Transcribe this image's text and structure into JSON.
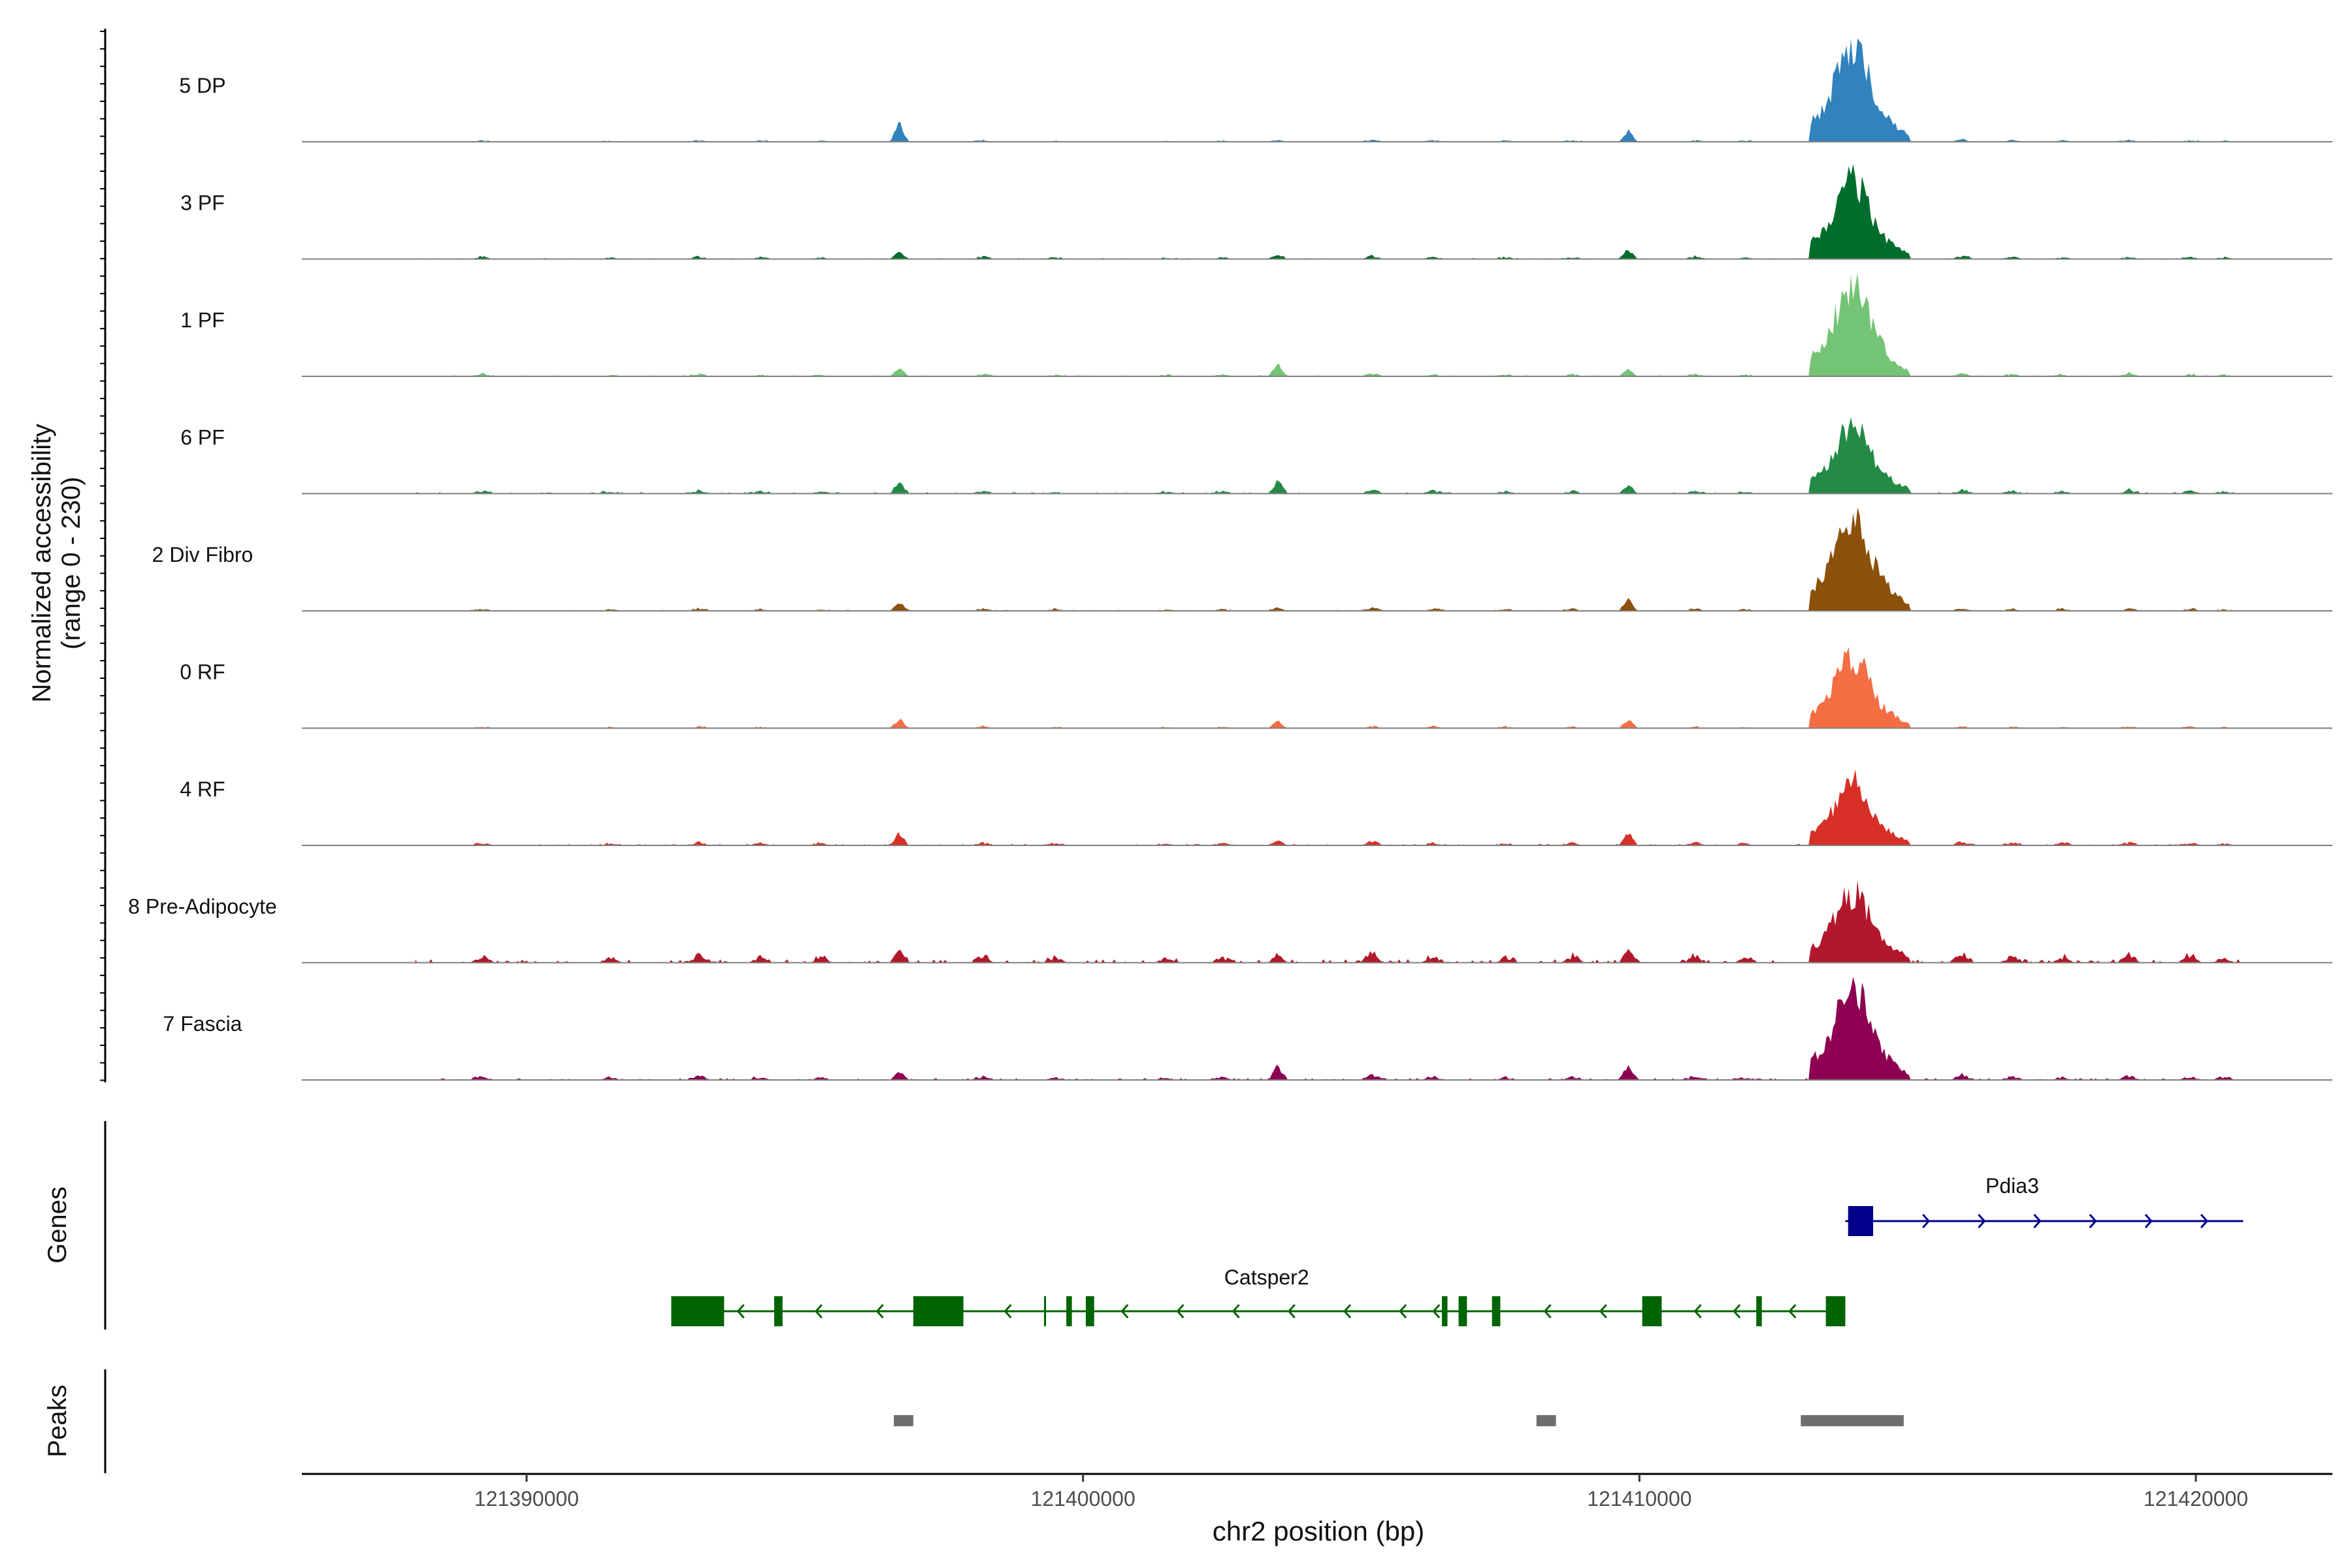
{
  "chart_data": {
    "type": "area",
    "title": "",
    "subtitle": "",
    "ylabel": "Normalized accessibility\n(range 0 - 230)",
    "xlabel": "chr2 position (bp)",
    "xlim": [
      121386000,
      121422500
    ],
    "ylim": [
      0,
      230
    ],
    "x_ticks": [
      121390000,
      121400000,
      121410000,
      121420000
    ],
    "x_tick_labels": [
      "121390000",
      "121400000",
      "121410000",
      "121420000"
    ],
    "grid": false,
    "track_start": 121388000,
    "track_end": 121420800,
    "peak_shapes": [
      [
        [
          121413050,
          0.2
        ],
        [
          121413250,
          0.3
        ],
        [
          121413400,
          0.45
        ],
        [
          121413550,
          0.7
        ],
        [
          121413650,
          0.85
        ],
        [
          121413750,
          0.95
        ],
        [
          121413850,
          1.0
        ],
        [
          121413950,
          0.95
        ],
        [
          121414050,
          0.8
        ],
        [
          121414150,
          0.6
        ],
        [
          121414300,
          0.4
        ],
        [
          121414450,
          0.25
        ],
        [
          121414650,
          0.15
        ],
        [
          121414850,
          0.06
        ]
      ],
      [
        [
          121396700,
          0.65
        ],
        [
          121409800,
          0.62
        ],
        [
          121403500,
          0.6
        ]
      ],
      [
        [
          121389200,
          0.08
        ],
        [
          121391500,
          0.07
        ],
        [
          121393100,
          0.1
        ],
        [
          121394200,
          0.07
        ],
        [
          121395300,
          0.06
        ],
        [
          121398200,
          0.09
        ],
        [
          121399500,
          0.06
        ],
        [
          121401500,
          0.05
        ],
        [
          121402500,
          0.07
        ],
        [
          121405200,
          0.12
        ],
        [
          121406300,
          0.09
        ],
        [
          121407600,
          0.07
        ],
        [
          121408800,
          0.08
        ],
        [
          121411000,
          0.09
        ],
        [
          121411900,
          0.06
        ],
        [
          121415800,
          0.12
        ],
        [
          121416700,
          0.09
        ],
        [
          121417600,
          0.07
        ],
        [
          121418800,
          0.1
        ],
        [
          121419900,
          0.08
        ],
        [
          121420500,
          0.06
        ]
      ]
    ],
    "series": [
      {
        "name": "5 DP",
        "color": "#3182bd",
        "peak_main": 0.95,
        "peak_secondary": [
          0.2,
          0.12,
          0.02
        ],
        "noise": 0.02
      },
      {
        "name": "3 PF",
        "color": "#006d2c",
        "peak_main": 0.78,
        "peak_secondary": [
          0.08,
          0.1,
          0.05
        ],
        "noise": 0.03
      },
      {
        "name": "1 PF",
        "color": "#74c476",
        "peak_main": 0.9,
        "peak_secondary": [
          0.1,
          0.08,
          0.14
        ],
        "noise": 0.03
      },
      {
        "name": "6 PF",
        "color": "#238b45",
        "peak_main": 0.68,
        "peak_secondary": [
          0.12,
          0.1,
          0.14
        ],
        "noise": 0.04
      },
      {
        "name": "2 Div Fibro",
        "color": "#8c510a",
        "peak_main": 1.0,
        "peak_secondary": [
          0.1,
          0.12,
          0.04
        ],
        "noise": 0.03
      },
      {
        "name": "0 RF",
        "color": "#f46d43",
        "peak_main": 0.7,
        "peak_secondary": [
          0.1,
          0.1,
          0.08
        ],
        "noise": 0.02
      },
      {
        "name": "4 RF",
        "color": "#d73027",
        "peak_main": 0.62,
        "peak_secondary": [
          0.14,
          0.14,
          0.06
        ],
        "noise": 0.04
      },
      {
        "name": "8 Pre-Adipocyte",
        "color": "#b2182b",
        "peak_main": 0.7,
        "peak_secondary": [
          0.16,
          0.15,
          0.1
        ],
        "noise": 0.1
      },
      {
        "name": "7 Fascia",
        "color": "#8e0152",
        "peak_main": 0.9,
        "peak_secondary": [
          0.1,
          0.16,
          0.15
        ],
        "noise": 0.05
      }
    ],
    "genes_label": "Genes",
    "genes": [
      {
        "name": "Pdia3",
        "color": "#00008b",
        "strand": "+",
        "start": 121413700,
        "end": 121420850,
        "exons": [
          [
            121413750,
            121414200
          ]
        ],
        "arrows": [
          121415200,
          121416200,
          121417200,
          121418200,
          121419200,
          121420200
        ]
      },
      {
        "name": "Catsper2",
        "color": "#006400",
        "strand": "-",
        "start": 121392600,
        "end": 121413700,
        "exons": [
          [
            121392600,
            121393550
          ],
          [
            121394450,
            121394600
          ],
          [
            121396950,
            121397850
          ],
          [
            121399300,
            121399330
          ],
          [
            121399700,
            121399800
          ],
          [
            121400050,
            121400200
          ],
          [
            121406450,
            121406550
          ],
          [
            121406750,
            121406900
          ],
          [
            121407350,
            121407500
          ],
          [
            121410050,
            121410400
          ],
          [
            121412100,
            121412200
          ],
          [
            121413350,
            121413700
          ]
        ],
        "arrows": [
          121393800,
          121395200,
          121396300,
          121398600,
          121400700,
          121401700,
          121402700,
          121403700,
          121404700,
          121405700,
          121406300,
          121408300,
          121409300,
          121411000,
          121411700,
          121412700
        ]
      }
    ],
    "peaks_label": "Peaks",
    "peaks": [
      [
        121396600,
        121396950
      ],
      [
        121408150,
        121408500
      ],
      [
        121412900,
        121414750
      ]
    ]
  }
}
